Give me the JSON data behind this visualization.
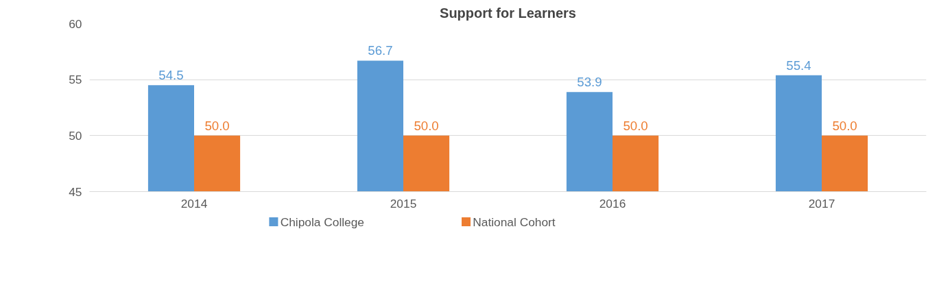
{
  "chart_data": {
    "type": "bar",
    "title": "Support for Learners",
    "categories": [
      "2014",
      "2015",
      "2016",
      "2017"
    ],
    "series": [
      {
        "name": "Chipola College",
        "color": "#5b9bd5",
        "values": [
          54.5,
          56.7,
          53.9,
          55.4
        ],
        "value_labels": [
          "54.5",
          "56.7",
          "53.9",
          "55.4"
        ]
      },
      {
        "name": "National Cohort",
        "color": "#ed7d31",
        "values": [
          50.0,
          50.0,
          50.0,
          50.0
        ],
        "value_labels": [
          "50.0",
          "50.0",
          "50.0",
          "50.0"
        ]
      }
    ],
    "ylim": [
      45,
      60
    ],
    "yticks": [
      45,
      50,
      55,
      60
    ],
    "grid": "y",
    "legend": "bottom"
  }
}
